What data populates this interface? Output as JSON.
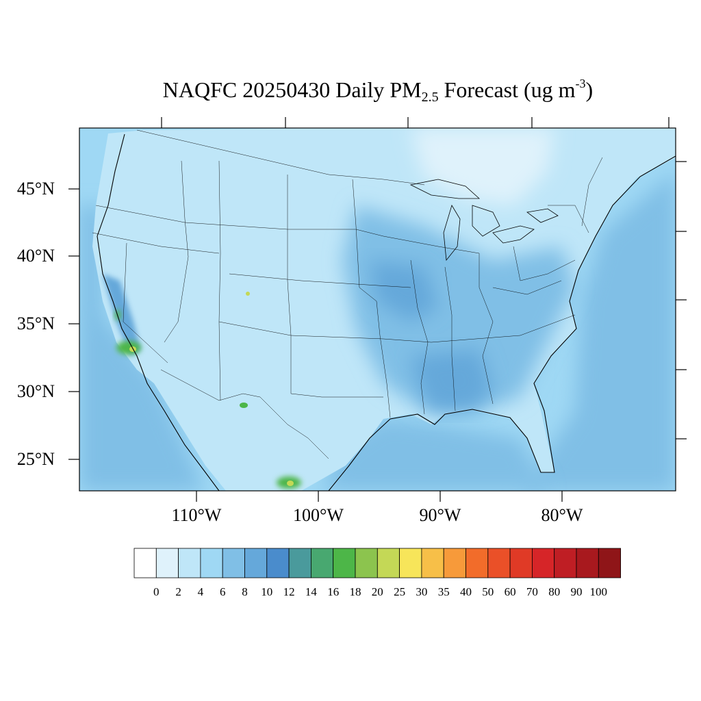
{
  "title": {
    "prefix": "NAQFC 20250430 Daily PM",
    "sub": "2.5",
    "mid": " Forecast (ug m",
    "sup": "-3",
    "suffix": ")"
  },
  "axes": {
    "lat_labels": [
      "45°N",
      "40°N",
      "35°N",
      "30°N",
      "25°N"
    ],
    "lon_labels": [
      "110°W",
      "100°W",
      "90°W",
      "80°W"
    ]
  },
  "colorbar": {
    "labels": [
      "0",
      "2",
      "4",
      "6",
      "8",
      "10",
      "12",
      "14",
      "16",
      "18",
      "20",
      "25",
      "30",
      "35",
      "40",
      "50",
      "60",
      "70",
      "80",
      "90",
      "100"
    ],
    "colors": [
      "#ffffff",
      "#dff2fb",
      "#bfe6f8",
      "#9fd8f4",
      "#80bfe6",
      "#65a8da",
      "#4a8ccc",
      "#4a9a9c",
      "#48a870",
      "#4db648",
      "#8cc44e",
      "#c4d856",
      "#f7e55a",
      "#f7bf48",
      "#f79a3a",
      "#f26c2a",
      "#ea5028",
      "#e03a26",
      "#d62528",
      "#bf1e24",
      "#a8191e",
      "#8f1518"
    ]
  },
  "map_fill": {
    "ocean": "#9fd8f4",
    "land_base": "#bfe6f8",
    "east_moderate": "#80bfe6",
    "southeast_high": "#65a8da",
    "north_clean": "#dff2fb",
    "hotspot_green": "#4db648",
    "hotspot_yellow": "#c4d856"
  }
}
